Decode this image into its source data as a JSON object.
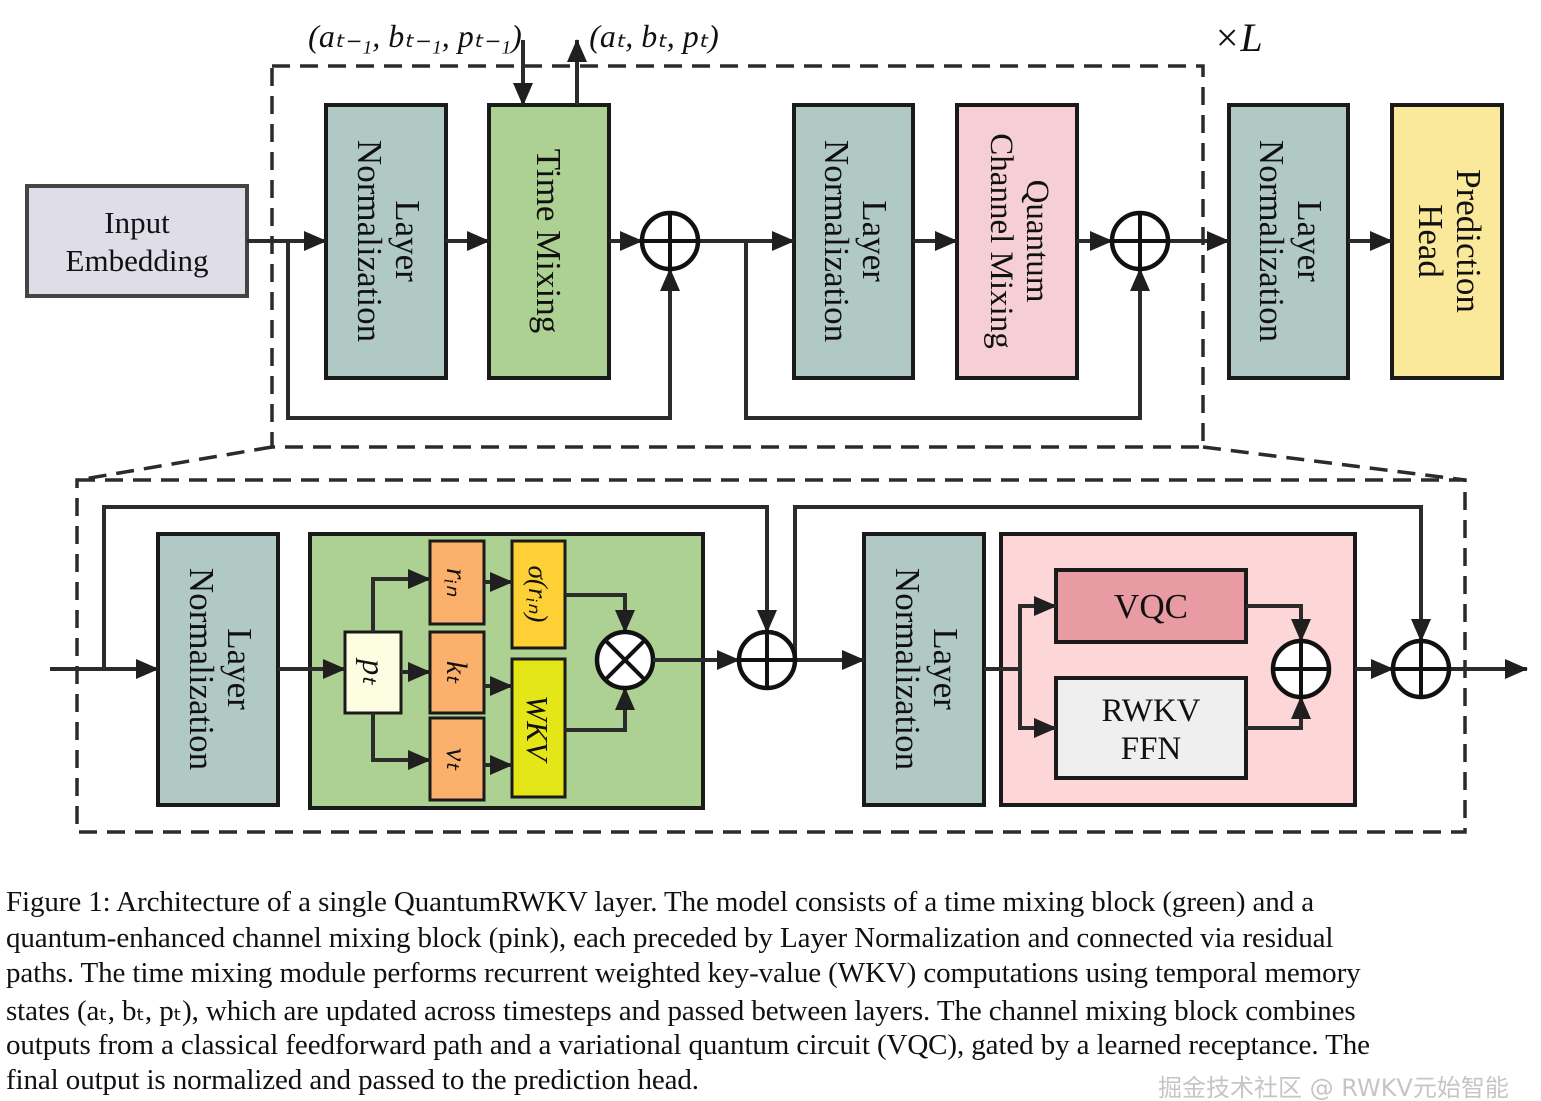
{
  "top": {
    "input_embedding": [
      "Input",
      "Embedding"
    ],
    "layer_norm": [
      "Layer",
      "Normalization"
    ],
    "time_mixing": "Time Mixing",
    "quantum_channel_mixing": [
      "Quantum",
      "Channel Mixing"
    ],
    "prediction_head": [
      "Prediction",
      "Head"
    ],
    "state_in": "(aₜ₋₁, bₜ₋₁, pₜ₋₁)",
    "state_out": "(aₜ, bₜ, pₜ)",
    "repeat": "×L"
  },
  "bottom": {
    "layer_norm": [
      "Layer",
      "Normalization"
    ],
    "p": "pₜ",
    "r": "rᵢₙ",
    "k": "kₜ",
    "v": "vₜ",
    "sigma": "σ(rᵢₙ)",
    "wkv": "WKV",
    "vqc": "VQC",
    "rwkv_ffn": [
      "RWKV",
      "FFN"
    ]
  },
  "colors": {
    "layer_norm": "#b0c9c5",
    "time_mixing": "#add192",
    "channel_mixing": "#f5cfd4",
    "prediction_head": "#fbe99b",
    "input_embedding": "#dedde8",
    "orange": "#fbb06c",
    "sigma": "#fdd036",
    "wkv": "#e5e617",
    "vqc": "#e99ba4",
    "pink_block": "#fdd7d7"
  },
  "caption": [
    "Figure 1:   Architecture of a single QuantumRWKV layer. The model consists of a time mixing block (green) and a",
    "quantum-enhanced channel mixing block (pink), each preceded by Layer Normalization and connected via residual",
    "paths. The time mixing module performs recurrent weighted key-value (WKV) computations using temporal memory",
    "states (aₜ, bₜ, pₜ), which are updated across timesteps and passed between layers. The channel mixing block combines",
    "outputs from a classical feedforward path and a variational quantum circuit (VQC), gated by a learned receptance. The",
    "final output is normalized and passed to the prediction head."
  ],
  "watermark": "掘金技术社区 @ RWKV元始智能"
}
